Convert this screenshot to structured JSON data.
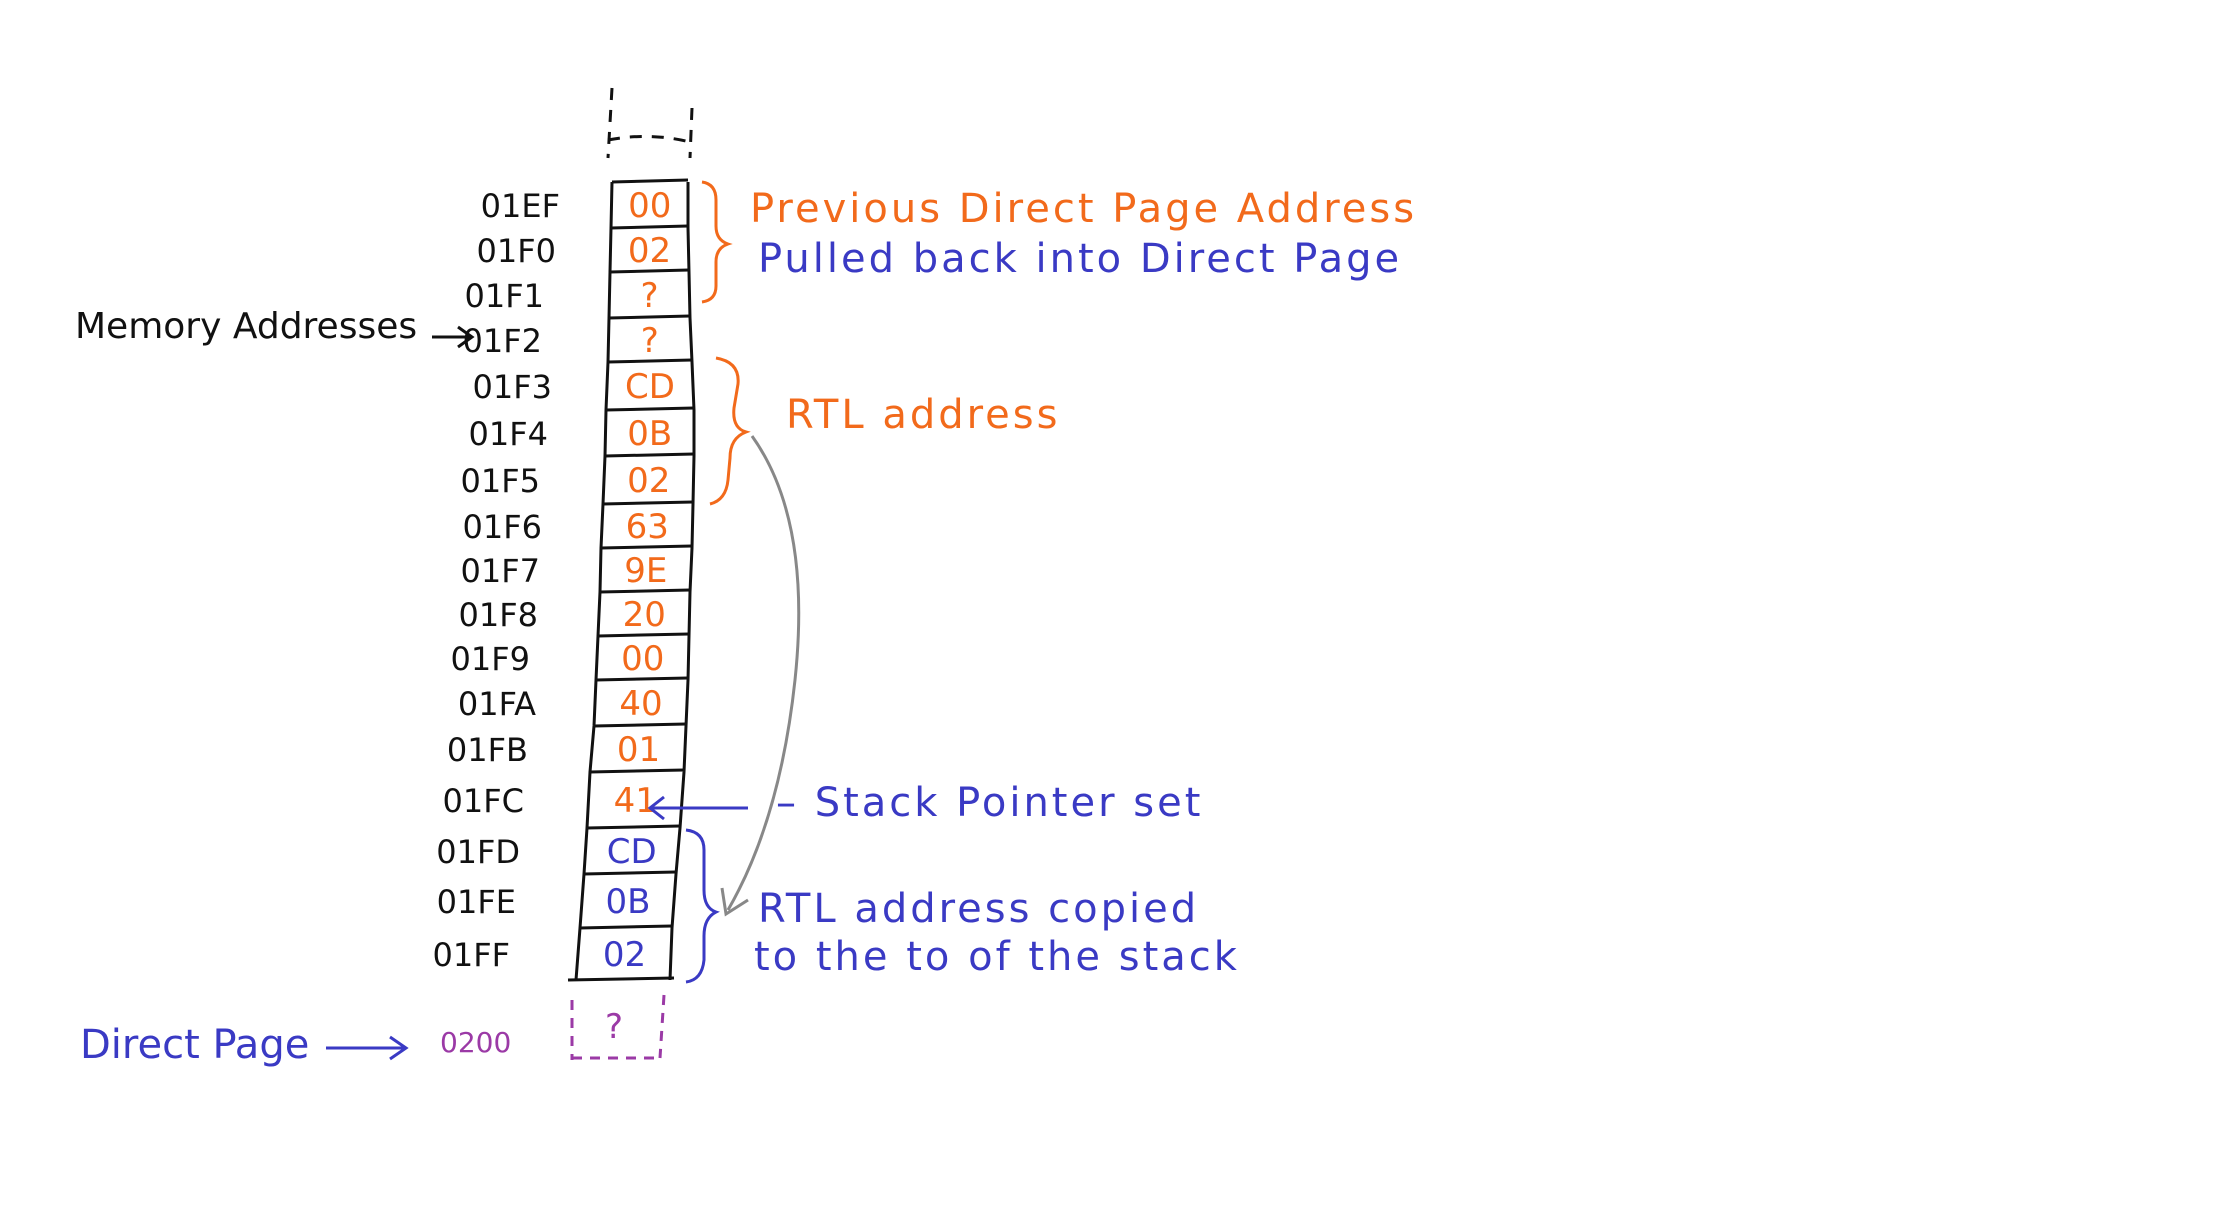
{
  "colors": {
    "ink": "#111111",
    "orange": "#f26a1b",
    "blue": "#3a3ac4",
    "purple": "#9b3aa6",
    "gray": "#888888"
  },
  "labels": {
    "memory_addresses": "Memory Addresses",
    "direct_page": "Direct Page",
    "direct_page_address": "0200",
    "direct_page_value": "?",
    "previous_dp_line1": "Previous Direct Page Address",
    "previous_dp_line2": "Pulled back into Direct Page",
    "rtl_address": "RTL address",
    "stack_pointer": "– Stack Pointer set",
    "rtl_copied_line1": "RTL address copied",
    "rtl_copied_line2": "to the to of the stack"
  },
  "stack": [
    {
      "address": "01EF",
      "value": "00",
      "color": "orange"
    },
    {
      "address": "01F0",
      "value": "02",
      "color": "orange"
    },
    {
      "address": "01F1",
      "value": "?",
      "color": "orange"
    },
    {
      "address": "01F2",
      "value": "?",
      "color": "orange"
    },
    {
      "address": "01F3",
      "value": "CD",
      "color": "orange"
    },
    {
      "address": "01F4",
      "value": "0B",
      "color": "orange"
    },
    {
      "address": "01F5",
      "value": "02",
      "color": "orange"
    },
    {
      "address": "01F6",
      "value": "63",
      "color": "orange"
    },
    {
      "address": "01F7",
      "value": "9E",
      "color": "orange"
    },
    {
      "address": "01F8",
      "value": "20",
      "color": "orange"
    },
    {
      "address": "01F9",
      "value": "00",
      "color": "orange"
    },
    {
      "address": "01FA",
      "value": "40",
      "color": "orange"
    },
    {
      "address": "01FB",
      "value": "01",
      "color": "orange"
    },
    {
      "address": "01FC",
      "value": "41",
      "color": "orange"
    },
    {
      "address": "01FD",
      "value": "CD",
      "color": "blue"
    },
    {
      "address": "01FE",
      "value": "0B",
      "color": "blue"
    },
    {
      "address": "01FF",
      "value": "02",
      "color": "blue"
    }
  ]
}
